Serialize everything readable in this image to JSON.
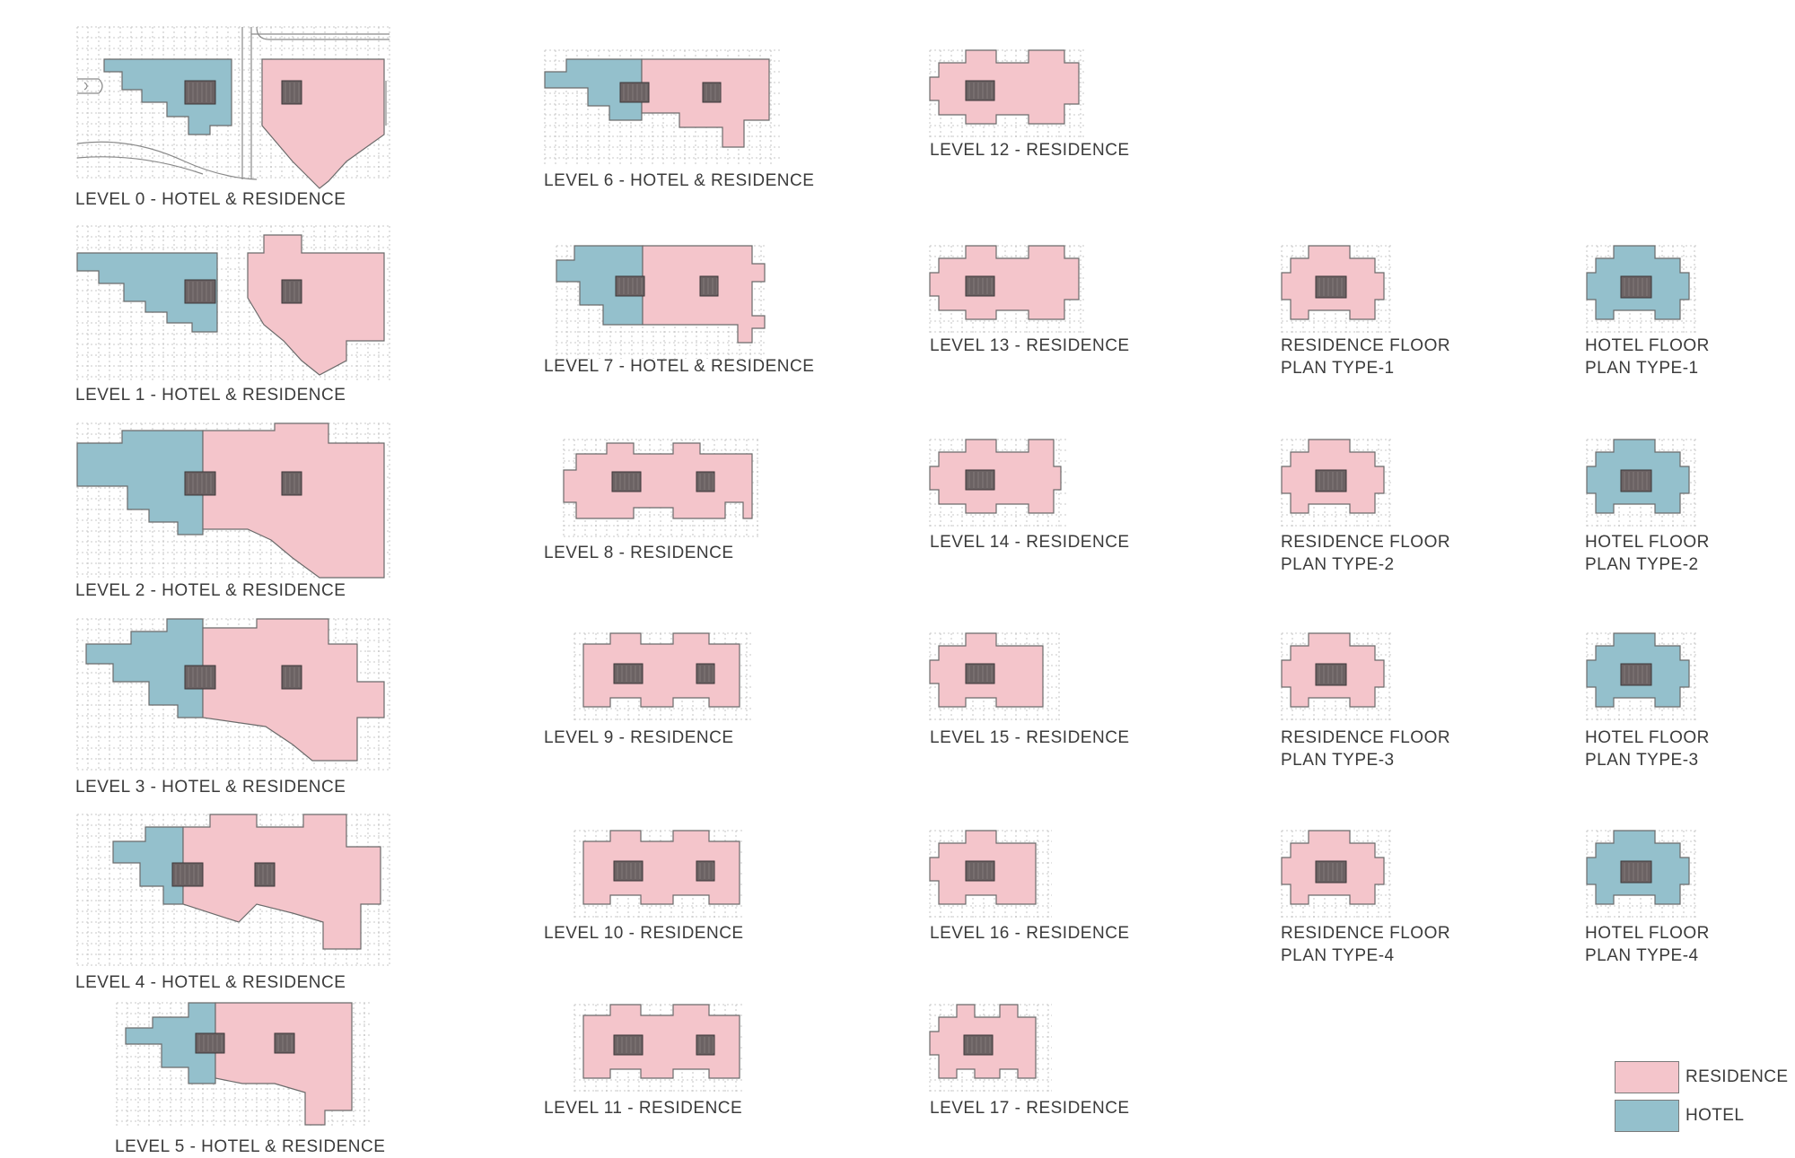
{
  "colors": {
    "residence": "#f4c5cb",
    "hotel": "#94c0cc",
    "core": "#6b6263",
    "outline": "#6b6b6b",
    "grid": "#b8b8b8"
  },
  "plans": [
    {
      "id": "level-0",
      "lines": [
        "LEVEL 0 - HOTEL & RESIDENCE"
      ]
    },
    {
      "id": "level-1",
      "lines": [
        "LEVEL 1 - HOTEL & RESIDENCE"
      ]
    },
    {
      "id": "level-2",
      "lines": [
        "LEVEL 2 - HOTEL & RESIDENCE"
      ]
    },
    {
      "id": "level-3",
      "lines": [
        "LEVEL 3 - HOTEL & RESIDENCE"
      ]
    },
    {
      "id": "level-4",
      "lines": [
        "LEVEL 4 - HOTEL & RESIDENCE"
      ]
    },
    {
      "id": "level-5",
      "lines": [
        "LEVEL 5 - HOTEL & RESIDENCE"
      ]
    },
    {
      "id": "level-6",
      "lines": [
        "LEVEL 6 - HOTEL & RESIDENCE"
      ]
    },
    {
      "id": "level-7",
      "lines": [
        "LEVEL 7 - HOTEL & RESIDENCE"
      ]
    },
    {
      "id": "level-8",
      "lines": [
        "LEVEL 8 - RESIDENCE"
      ]
    },
    {
      "id": "level-9",
      "lines": [
        "LEVEL 9 - RESIDENCE"
      ]
    },
    {
      "id": "level-10",
      "lines": [
        "LEVEL 10 - RESIDENCE"
      ]
    },
    {
      "id": "level-11",
      "lines": [
        "LEVEL 11 - RESIDENCE"
      ]
    },
    {
      "id": "level-12",
      "lines": [
        "LEVEL 12 - RESIDENCE"
      ]
    },
    {
      "id": "level-13",
      "lines": [
        "LEVEL 13 - RESIDENCE"
      ]
    },
    {
      "id": "level-14",
      "lines": [
        "LEVEL 14 - RESIDENCE"
      ]
    },
    {
      "id": "level-15",
      "lines": [
        "LEVEL 15 - RESIDENCE"
      ]
    },
    {
      "id": "level-16",
      "lines": [
        "LEVEL 16 - RESIDENCE"
      ]
    },
    {
      "id": "level-17",
      "lines": [
        "LEVEL 17 - RESIDENCE"
      ]
    },
    {
      "id": "res-type-1",
      "lines": [
        "RESIDENCE FLOOR",
        "PLAN TYPE-1"
      ]
    },
    {
      "id": "res-type-2",
      "lines": [
        "RESIDENCE FLOOR",
        "PLAN TYPE-2"
      ]
    },
    {
      "id": "res-type-3",
      "lines": [
        "RESIDENCE FLOOR",
        "PLAN TYPE-3"
      ]
    },
    {
      "id": "res-type-4",
      "lines": [
        "RESIDENCE FLOOR",
        "PLAN TYPE-4"
      ]
    },
    {
      "id": "hotel-type-1",
      "lines": [
        "HOTEL FLOOR",
        "PLAN TYPE-1"
      ]
    },
    {
      "id": "hotel-type-2",
      "lines": [
        "HOTEL FLOOR",
        "PLAN TYPE-2"
      ]
    },
    {
      "id": "hotel-type-3",
      "lines": [
        "HOTEL FLOOR",
        "PLAN TYPE-3"
      ]
    },
    {
      "id": "hotel-type-4",
      "lines": [
        "HOTEL FLOOR",
        "PLAN TYPE-4"
      ]
    }
  ],
  "legend": {
    "residence_label": "RESIDENCE",
    "hotel_label": "HOTEL"
  }
}
